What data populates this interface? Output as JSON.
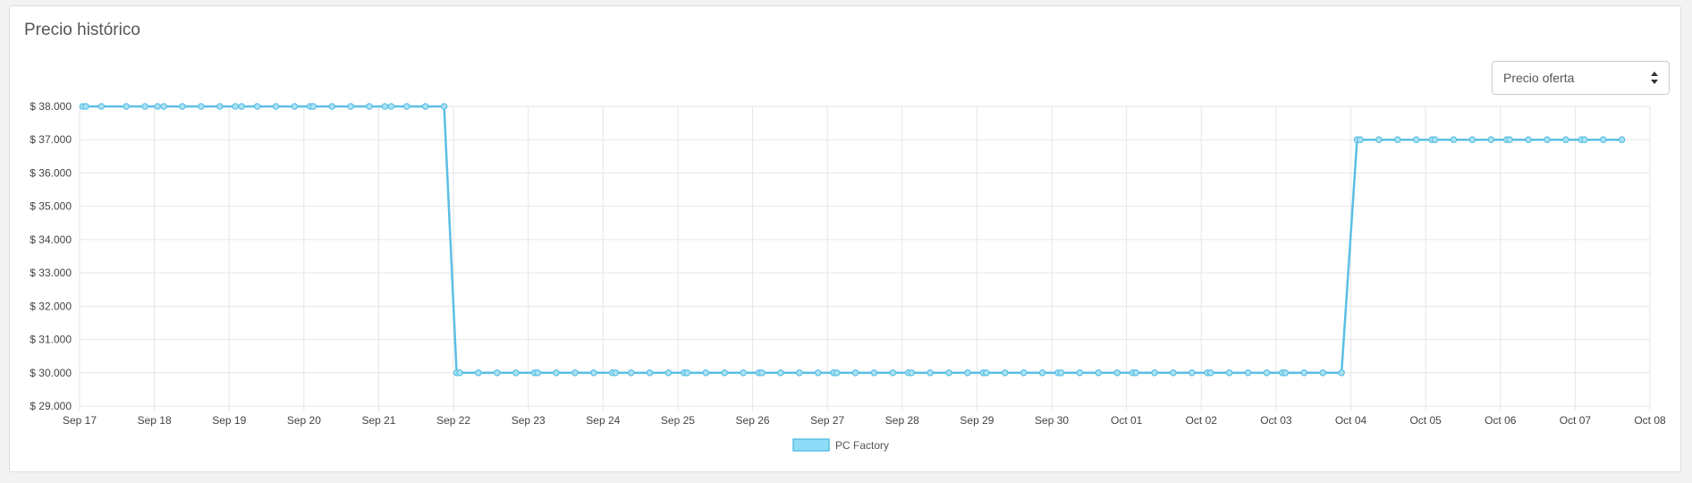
{
  "panel": {
    "title": "Precio histórico"
  },
  "price_select": {
    "selected": "Precio oferta"
  },
  "colors": {
    "line": "#5bbfe4",
    "point_fill": "#a9e2f3",
    "legend_fill": "#8fdcf8",
    "grid": "#e6e6e6"
  },
  "chart_data": {
    "type": "line",
    "title": "",
    "xlabel": "",
    "ylabel": "",
    "x_axis": {
      "type": "date",
      "range": [
        "2019-09-17",
        "2019-10-08"
      ],
      "tick_labels": [
        "Sep 17",
        "Sep 18",
        "Sep 19",
        "Sep 20",
        "Sep 21",
        "Sep 22",
        "Sep 23",
        "Sep 24",
        "Sep 25",
        "Sep 26",
        "Sep 27",
        "Sep 28",
        "Sep 29",
        "Sep 30",
        "Oct 01",
        "Oct 02",
        "Oct 03",
        "Oct 04",
        "Oct 05",
        "Oct 06",
        "Oct 07",
        "Oct 08"
      ]
    },
    "y_axis": {
      "range": [
        29000,
        38000
      ],
      "tick_values": [
        38000,
        37000,
        36000,
        35000,
        34000,
        33000,
        32000,
        31000,
        30000,
        29000
      ],
      "tick_labels": [
        "$ 38.000",
        "$ 37.000",
        "$ 36.000",
        "$ 35.000",
        "$ 34.000",
        "$ 33.000",
        "$ 32.000",
        "$ 31.000",
        "$ 30.000",
        "$ 29.000"
      ]
    },
    "grid": true,
    "legend": "bottom-center",
    "series": [
      {
        "name": "PC Factory",
        "points": [
          [
            "2019-09-17 01:00",
            38000
          ],
          [
            "2019-09-17 02:00",
            38000
          ],
          [
            "2019-09-17 07:00",
            38000
          ],
          [
            "2019-09-17 15:00",
            38000
          ],
          [
            "2019-09-17 21:00",
            38000
          ],
          [
            "2019-09-18 01:00",
            38000
          ],
          [
            "2019-09-18 03:00",
            38000
          ],
          [
            "2019-09-18 09:00",
            38000
          ],
          [
            "2019-09-18 15:00",
            38000
          ],
          [
            "2019-09-18 21:00",
            38000
          ],
          [
            "2019-09-19 02:00",
            38000
          ],
          [
            "2019-09-19 04:00",
            38000
          ],
          [
            "2019-09-19 09:00",
            38000
          ],
          [
            "2019-09-19 15:00",
            38000
          ],
          [
            "2019-09-19 21:00",
            38000
          ],
          [
            "2019-09-20 02:00",
            38000
          ],
          [
            "2019-09-20 03:00",
            38000
          ],
          [
            "2019-09-20 09:00",
            38000
          ],
          [
            "2019-09-20 15:00",
            38000
          ],
          [
            "2019-09-20 21:00",
            38000
          ],
          [
            "2019-09-21 02:00",
            38000
          ],
          [
            "2019-09-21 04:00",
            38000
          ],
          [
            "2019-09-21 09:00",
            38000
          ],
          [
            "2019-09-21 15:00",
            38000
          ],
          [
            "2019-09-21 21:00",
            38000
          ],
          [
            "2019-09-22 01:00",
            30000
          ],
          [
            "2019-09-22 02:00",
            30000
          ],
          [
            "2019-09-22 08:00",
            30000
          ],
          [
            "2019-09-22 14:00",
            30000
          ],
          [
            "2019-09-22 20:00",
            30000
          ],
          [
            "2019-09-23 02:00",
            30000
          ],
          [
            "2019-09-23 03:00",
            30000
          ],
          [
            "2019-09-23 09:00",
            30000
          ],
          [
            "2019-09-23 15:00",
            30000
          ],
          [
            "2019-09-23 21:00",
            30000
          ],
          [
            "2019-09-24 03:00",
            30000
          ],
          [
            "2019-09-24 04:00",
            30000
          ],
          [
            "2019-09-24 09:00",
            30000
          ],
          [
            "2019-09-24 15:00",
            30000
          ],
          [
            "2019-09-24 21:00",
            30000
          ],
          [
            "2019-09-25 02:00",
            30000
          ],
          [
            "2019-09-25 03:00",
            30000
          ],
          [
            "2019-09-25 09:00",
            30000
          ],
          [
            "2019-09-25 15:00",
            30000
          ],
          [
            "2019-09-25 21:00",
            30000
          ],
          [
            "2019-09-26 02:00",
            30000
          ],
          [
            "2019-09-26 03:00",
            30000
          ],
          [
            "2019-09-26 09:00",
            30000
          ],
          [
            "2019-09-26 15:00",
            30000
          ],
          [
            "2019-09-26 21:00",
            30000
          ],
          [
            "2019-09-27 02:00",
            30000
          ],
          [
            "2019-09-27 03:00",
            30000
          ],
          [
            "2019-09-27 09:00",
            30000
          ],
          [
            "2019-09-27 15:00",
            30000
          ],
          [
            "2019-09-27 21:00",
            30000
          ],
          [
            "2019-09-28 02:00",
            30000
          ],
          [
            "2019-09-28 03:00",
            30000
          ],
          [
            "2019-09-28 09:00",
            30000
          ],
          [
            "2019-09-28 15:00",
            30000
          ],
          [
            "2019-09-28 21:00",
            30000
          ],
          [
            "2019-09-29 02:00",
            30000
          ],
          [
            "2019-09-29 03:00",
            30000
          ],
          [
            "2019-09-29 09:00",
            30000
          ],
          [
            "2019-09-29 15:00",
            30000
          ],
          [
            "2019-09-29 21:00",
            30000
          ],
          [
            "2019-09-30 02:00",
            30000
          ],
          [
            "2019-09-30 03:00",
            30000
          ],
          [
            "2019-09-30 09:00",
            30000
          ],
          [
            "2019-09-30 15:00",
            30000
          ],
          [
            "2019-09-30 21:00",
            30000
          ],
          [
            "2019-10-01 02:00",
            30000
          ],
          [
            "2019-10-01 03:00",
            30000
          ],
          [
            "2019-10-01 09:00",
            30000
          ],
          [
            "2019-10-01 15:00",
            30000
          ],
          [
            "2019-10-01 21:00",
            30000
          ],
          [
            "2019-10-02 02:00",
            30000
          ],
          [
            "2019-10-02 03:00",
            30000
          ],
          [
            "2019-10-02 09:00",
            30000
          ],
          [
            "2019-10-02 15:00",
            30000
          ],
          [
            "2019-10-02 21:00",
            30000
          ],
          [
            "2019-10-03 02:00",
            30000
          ],
          [
            "2019-10-03 03:00",
            30000
          ],
          [
            "2019-10-03 09:00",
            30000
          ],
          [
            "2019-10-03 15:00",
            30000
          ],
          [
            "2019-10-03 21:00",
            30000
          ],
          [
            "2019-10-04 02:00",
            37000
          ],
          [
            "2019-10-04 03:00",
            37000
          ],
          [
            "2019-10-04 09:00",
            37000
          ],
          [
            "2019-10-04 15:00",
            37000
          ],
          [
            "2019-10-04 21:00",
            37000
          ],
          [
            "2019-10-05 02:00",
            37000
          ],
          [
            "2019-10-05 03:00",
            37000
          ],
          [
            "2019-10-05 09:00",
            37000
          ],
          [
            "2019-10-05 15:00",
            37000
          ],
          [
            "2019-10-05 21:00",
            37000
          ],
          [
            "2019-10-06 02:00",
            37000
          ],
          [
            "2019-10-06 03:00",
            37000
          ],
          [
            "2019-10-06 09:00",
            37000
          ],
          [
            "2019-10-06 15:00",
            37000
          ],
          [
            "2019-10-06 21:00",
            37000
          ],
          [
            "2019-10-07 02:00",
            37000
          ],
          [
            "2019-10-07 03:00",
            37000
          ],
          [
            "2019-10-07 09:00",
            37000
          ],
          [
            "2019-10-07 15:00",
            37000
          ]
        ]
      }
    ]
  }
}
